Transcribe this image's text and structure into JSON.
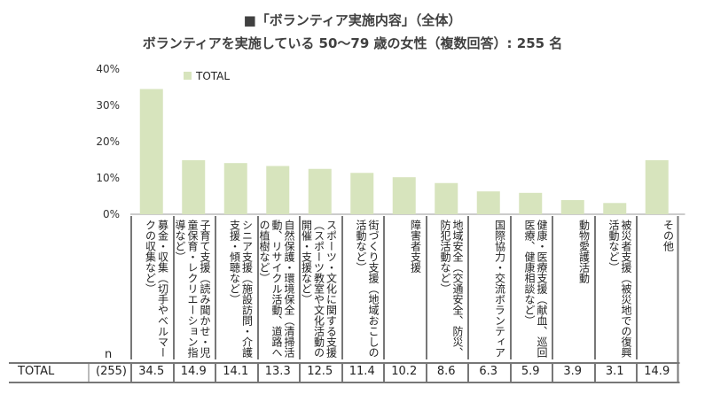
{
  "title": "■「ボランティア実施内容」（全体）",
  "subtitle": "ボランティアを実施している 50～79 歳の女性（複数回答）: 255 名",
  "chart_data": {
    "type": "bar",
    "title": "■「ボランティア実施内容」（全体）",
    "ylim": [
      0,
      40
    ],
    "yticks": [
      "0%",
      "10%",
      "20%",
      "30%",
      "40%"
    ],
    "legend": "TOTAL",
    "legend_position": "top-left",
    "bar_color": "#d7e4bd",
    "categories": [
      "募金・収集（切手やベルマークの収集など）",
      "子育て支援（読み聞かせ・児童保育・レクリエーション指導など）",
      "シニア支援（施設訪問・介護支援・傾聴など）",
      "自然保護・環境保全（清掃活動、リサイクル活動、道路への植樹など）",
      "スポーツ・文化に関する支援（スポーツ教室や文化活動の開催・支援など）",
      "街づくり支援（地域おこしの活動など）",
      "障害者支援",
      "地域安全（交通安全、防災、防犯活動など）",
      "国際協力・交流ボランティア",
      "健康・医療支援（献血、巡回医療、健康相談など）",
      "動物愛護活動",
      "被災者支援（被災地での復興活動など）",
      "その他"
    ],
    "values": [
      34.5,
      14.9,
      14.1,
      13.3,
      12.5,
      11.4,
      10.2,
      8.6,
      6.3,
      5.9,
      3.9,
      3.1,
      14.9
    ],
    "value_labels": [
      "34.5",
      "14.9",
      "14.1",
      "13.3",
      "12.5",
      "11.4",
      "10.2",
      "8.6",
      "6.3",
      "5.9",
      "3.9",
      "3.1",
      "14.9"
    ]
  },
  "table": {
    "n_label": "n",
    "row_label": "TOTAL",
    "n_value": "(255)"
  }
}
